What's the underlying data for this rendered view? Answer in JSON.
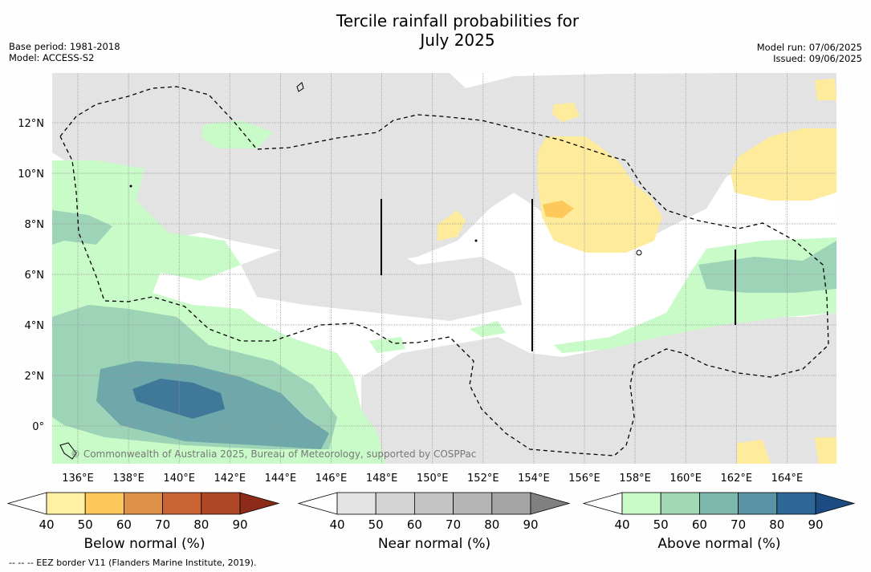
{
  "title_line1": "Tercile rainfall probabilities for",
  "title_line2": "July 2025",
  "base_period": "Base period: 1981-2018",
  "model": "Model: ACCESS-S2",
  "model_run": "Model run: 07/06/2025",
  "issued": "Issued: 09/06/2025",
  "credit": "© Commonwealth of Australia 2025, Bureau of Meteorology, supported by COSPPac",
  "lon_labels": [
    "136°E",
    "138°E",
    "140°E",
    "142°E",
    "144°E",
    "146°E",
    "148°E",
    "150°E",
    "152°E",
    "154°E",
    "156°E",
    "158°E",
    "160°E",
    "162°E",
    "164°E"
  ],
  "lat_labels": [
    "12°N",
    "10°N",
    "8°N",
    "6°N",
    "4°N",
    "2°N",
    "0°"
  ],
  "legends": [
    {
      "name": "below",
      "title": "Below normal (%)",
      "ticks": [
        "40",
        "50",
        "60",
        "70",
        "80",
        "90"
      ],
      "colors": [
        "#ffffff",
        "#fff0a3",
        "#fdc85c",
        "#df9049",
        "#cb6435",
        "#ae4826",
        "#8c2b1a"
      ]
    },
    {
      "name": "near",
      "title": "Near normal (%)",
      "ticks": [
        "40",
        "50",
        "60",
        "70",
        "80",
        "90"
      ],
      "colors": [
        "#ffffff",
        "#e4e4e4",
        "#d4d4d4",
        "#c4c4c4",
        "#b4b4b4",
        "#a4a4a4",
        "#808080"
      ]
    },
    {
      "name": "above",
      "title": "Above normal (%)",
      "ticks": [
        "40",
        "50",
        "60",
        "70",
        "80",
        "90"
      ],
      "colors": [
        "#ffffff",
        "#c9fac8",
        "#a3d8b5",
        "#7db8ad",
        "#5a94a4",
        "#2e6696",
        "#1b4b80"
      ]
    }
  ],
  "footnote": "--  --  -- EEZ border V11 (Flanders Marine Institute, 2019).",
  "colors": {
    "grey": "#e3e3e3",
    "green": "#c8fbc8",
    "teal1": "#9dd3b7",
    "teal2": "#6fa8aa",
    "blue": "#3f7898",
    "yellow": "#feeb9b",
    "orange": "#fcc95a"
  }
}
